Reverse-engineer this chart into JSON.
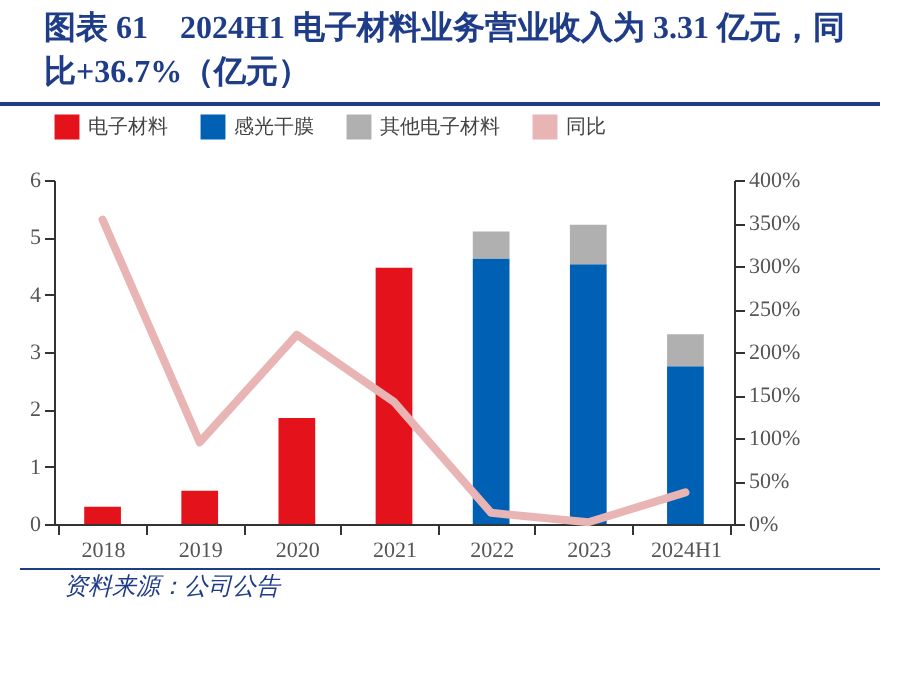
{
  "chart_data": {
    "type": "bar",
    "title": "图表 61　2024H1 电子材料业务营业收入为 3.31 亿元，同比+36.7%（亿元）",
    "annotations": [
      "资料来源：公司公告"
    ],
    "categories": [
      "2018",
      "2019",
      "2020",
      "2021",
      "2022",
      "2023",
      "2024H1"
    ],
    "stacked": true,
    "legend": "top",
    "grid": false,
    "ylim": [
      0,
      6
    ],
    "yticks": [
      0,
      1,
      2,
      3,
      4,
      5,
      6
    ],
    "y2lim": [
      0,
      400
    ],
    "y2ticks": [
      {
        "value": 0,
        "label": "0%"
      },
      {
        "value": 50,
        "label": "50%"
      },
      {
        "value": 100,
        "label": "100%"
      },
      {
        "value": 150,
        "label": "150%"
      },
      {
        "value": 200,
        "label": "200%"
      },
      {
        "value": 250,
        "label": "250%"
      },
      {
        "value": 300,
        "label": "300%"
      },
      {
        "value": 350,
        "label": "350%"
      },
      {
        "value": 400,
        "label": "400%"
      }
    ],
    "series": [
      {
        "name": "电子材料",
        "color": "#e3121b",
        "values": [
          0.3,
          0.58,
          1.85,
          4.47,
          null,
          null,
          null
        ]
      },
      {
        "name": "感光干膜",
        "color": "#0060b4",
        "values": [
          null,
          null,
          null,
          null,
          4.63,
          4.53,
          2.75
        ]
      },
      {
        "name": "其他电子材料",
        "color": "#b0b0b0",
        "values": [
          null,
          null,
          null,
          null,
          0.47,
          0.69,
          0.56
        ]
      },
      {
        "name": "同比",
        "type": "line",
        "axis": "y2",
        "color": "#e8b4b4",
        "values": [
          354,
          95,
          220,
          142,
          13,
          2,
          36.7
        ]
      }
    ]
  }
}
